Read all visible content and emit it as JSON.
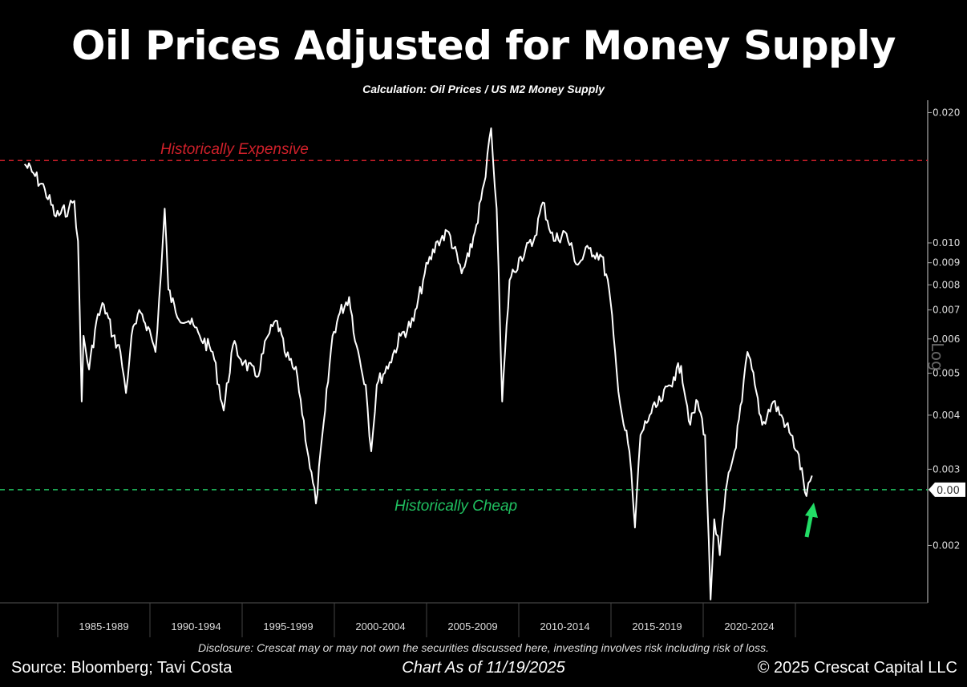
{
  "chart_data": {
    "type": "line",
    "title": "Oil Prices Adjusted for Money Supply",
    "subtitle": "Calculation: Oil Prices / US M2 Money Supply",
    "y_scale": "log",
    "y_axis_label": "Log",
    "y_ticks": [
      "0.020",
      "0.010",
      "0.009",
      "0.008",
      "0.007",
      "0.006",
      "0.005",
      "0.004",
      "0.003",
      "0.002"
    ],
    "ylim": [
      0.00145,
      0.0215
    ],
    "x_tick_labels": [
      "1985-1989",
      "1990-1994",
      "1995-1999",
      "2000-2004",
      "2005-2009",
      "2010-2014",
      "2015-2019",
      "2020-2024"
    ],
    "xlim": [
      1983.0,
      2032.0
    ],
    "grid": false,
    "line_color": "#ffffff",
    "last_value_tag": "0.00",
    "reference_lines": [
      {
        "label": "Historically Expensive",
        "value": 0.0155,
        "color": "#d0202a",
        "style": "dashed"
      },
      {
        "label": "Historically Cheap",
        "value": 0.00269,
        "color": "#20c060",
        "style": "dashed"
      }
    ],
    "arrow_color": "#22dd66",
    "series": [
      {
        "x": [
          1983.2,
          1983.6,
          1984.3,
          1984.9,
          1985.6,
          1985.9,
          1986.1,
          1986.3,
          1986.4,
          1986.7,
          1987.1,
          1987.5,
          1988.0,
          1988.4,
          1988.7,
          1989.0,
          1989.5,
          1989.9,
          1990.3,
          1990.6,
          1990.8,
          1991.0,
          1991.4,
          1992.1,
          1992.7,
          1993.4,
          1994.0,
          1994.5,
          1995.1,
          1995.8,
          1996.4,
          1996.9,
          1997.3,
          1998.0,
          1998.6,
          1999.0,
          1999.5,
          1999.9,
          2000.3,
          2000.8,
          2001.2,
          2001.7,
          2002.0,
          2002.3,
          2003.0,
          2003.6,
          2004.3,
          2004.9,
          2005.6,
          2006.2,
          2006.9,
          2007.3,
          2007.7,
          2008.2,
          2008.5,
          2008.8,
          2009.1,
          2009.5,
          2010.1,
          2010.8,
          2011.3,
          2011.9,
          2012.5,
          2013.2,
          2013.8,
          2014.5,
          2014.9,
          2015.3,
          2015.6,
          2016.0,
          2016.3,
          2016.6,
          2017.1,
          2017.7,
          2018.4,
          2018.8,
          2019.3,
          2019.7,
          2020.1,
          2020.4,
          2020.6,
          2020.9,
          2021.3,
          2021.7,
          2022.1,
          2022.4,
          2022.8,
          2023.2,
          2023.8,
          2024.5,
          2025.1,
          2025.6,
          2025.9
        ],
        "y": [
          0.0152,
          0.0146,
          0.0133,
          0.0115,
          0.012,
          0.0125,
          0.0101,
          0.0043,
          0.0061,
          0.0051,
          0.0066,
          0.0072,
          0.0061,
          0.0056,
          0.0045,
          0.0061,
          0.0069,
          0.0064,
          0.0056,
          0.0085,
          0.012,
          0.0078,
          0.0069,
          0.0066,
          0.0061,
          0.0056,
          0.0041,
          0.0058,
          0.0053,
          0.0049,
          0.0061,
          0.0066,
          0.0056,
          0.0049,
          0.0032,
          0.0025,
          0.0041,
          0.0061,
          0.0069,
          0.0075,
          0.0058,
          0.0047,
          0.0033,
          0.0047,
          0.0053,
          0.0061,
          0.0066,
          0.0085,
          0.0101,
          0.0106,
          0.0085,
          0.0093,
          0.011,
          0.0142,
          0.0184,
          0.012,
          0.0043,
          0.0082,
          0.0093,
          0.0101,
          0.0124,
          0.0101,
          0.0106,
          0.0089,
          0.0097,
          0.0093,
          0.0078,
          0.0051,
          0.004,
          0.0033,
          0.0022,
          0.0036,
          0.004,
          0.0043,
          0.0049,
          0.0052,
          0.0038,
          0.0043,
          0.0036,
          0.0015,
          0.0023,
          0.0019,
          0.0028,
          0.0033,
          0.0043,
          0.0056,
          0.0047,
          0.0038,
          0.0043,
          0.0038,
          0.0033,
          0.0026,
          0.0029
        ]
      }
    ]
  },
  "footer": {
    "disclosure": "Disclosure: Crescat may or may not own the securities discussed here, investing involves risk including risk of loss.",
    "source": "Source: Bloomberg; Tavi Costa",
    "as_of": "Chart As of 11/19/2025",
    "copyright": "© 2025 Crescat Capital LLC"
  }
}
